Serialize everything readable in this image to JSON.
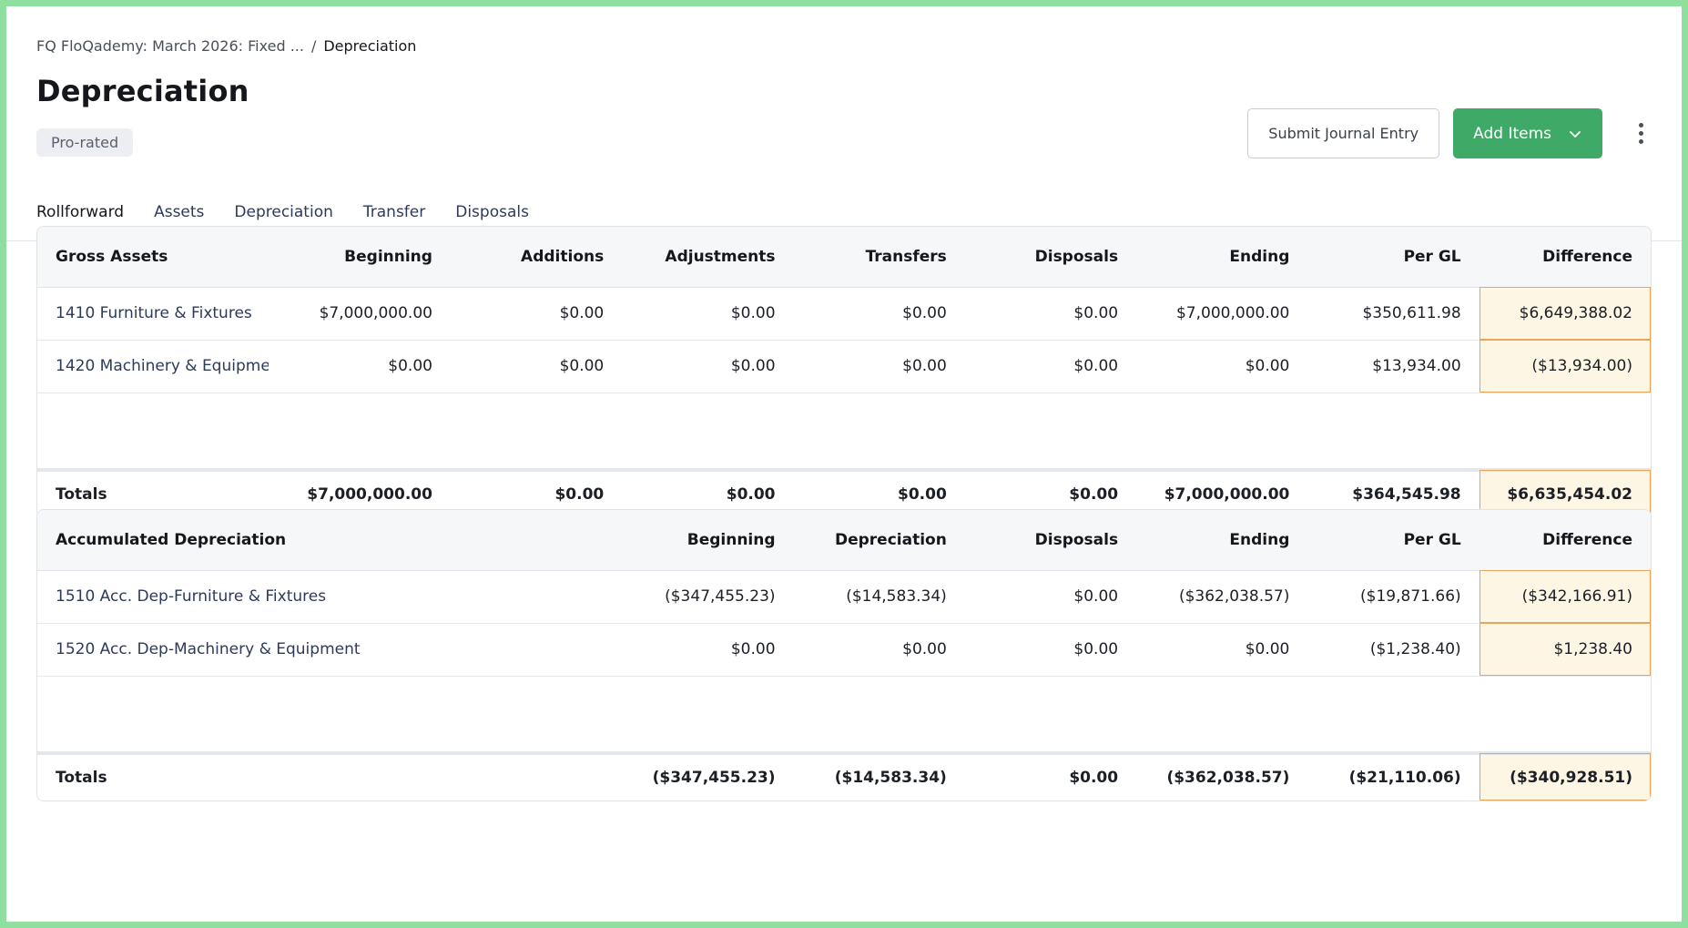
{
  "breadcrumb": {
    "parent": "FQ FloQademy: March 2026: Fixed ...",
    "separator": "/",
    "current": "Depreciation"
  },
  "page": {
    "title": "Depreciation",
    "badge": "Pro-rated"
  },
  "actions": {
    "submit_label": "Submit Journal Entry",
    "add_label": "Add Items"
  },
  "tabs": [
    {
      "label": "Rollforward",
      "active": true
    },
    {
      "label": "Assets"
    },
    {
      "label": "Depreciation"
    },
    {
      "label": "Transfer"
    },
    {
      "label": "Disposals"
    }
  ],
  "gross": {
    "headers": [
      "Gross Assets",
      "Beginning",
      "Additions",
      "Adjustments",
      "Transfers",
      "Disposals",
      "Ending",
      "Per GL",
      "Difference"
    ],
    "rows": [
      [
        "1410 Furniture & Fixtures",
        "$7,000,000.00",
        "$0.00",
        "$0.00",
        "$0.00",
        "$0.00",
        "$7,000,000.00",
        "$350,611.98",
        "$6,649,388.02"
      ],
      [
        "1420 Machinery & Equipme",
        "$0.00",
        "$0.00",
        "$0.00",
        "$0.00",
        "$0.00",
        "$0.00",
        "$13,934.00",
        "($13,934.00)"
      ]
    ],
    "totals": [
      "Totals",
      "$7,000,000.00",
      "$0.00",
      "$0.00",
      "$0.00",
      "$0.00",
      "$7,000,000.00",
      "$364,545.98",
      "$6,635,454.02"
    ]
  },
  "accum": {
    "headers": [
      "Accumulated Depreciation",
      "Beginning",
      "Depreciation",
      "Disposals",
      "Ending",
      "Per GL",
      "Difference"
    ],
    "rows": [
      [
        "1510 Acc. Dep-Furniture & Fixtures",
        "($347,455.23)",
        "($14,583.34)",
        "$0.00",
        "($362,038.57)",
        "($19,871.66)",
        "($342,166.91)"
      ],
      [
        "1520 Acc. Dep-Machinery & Equipment",
        "$0.00",
        "$0.00",
        "$0.00",
        "$0.00",
        "($1,238.40)",
        "$1,238.40"
      ]
    ],
    "totals": [
      "Totals",
      "($347,455.23)",
      "($14,583.34)",
      "$0.00",
      "($362,038.57)",
      "($21,110.06)",
      "($340,928.51)"
    ]
  },
  "colors": {
    "accent": "#3faa67",
    "difference_bg": "#fdf6e4",
    "difference_border": "#e8a55a"
  }
}
